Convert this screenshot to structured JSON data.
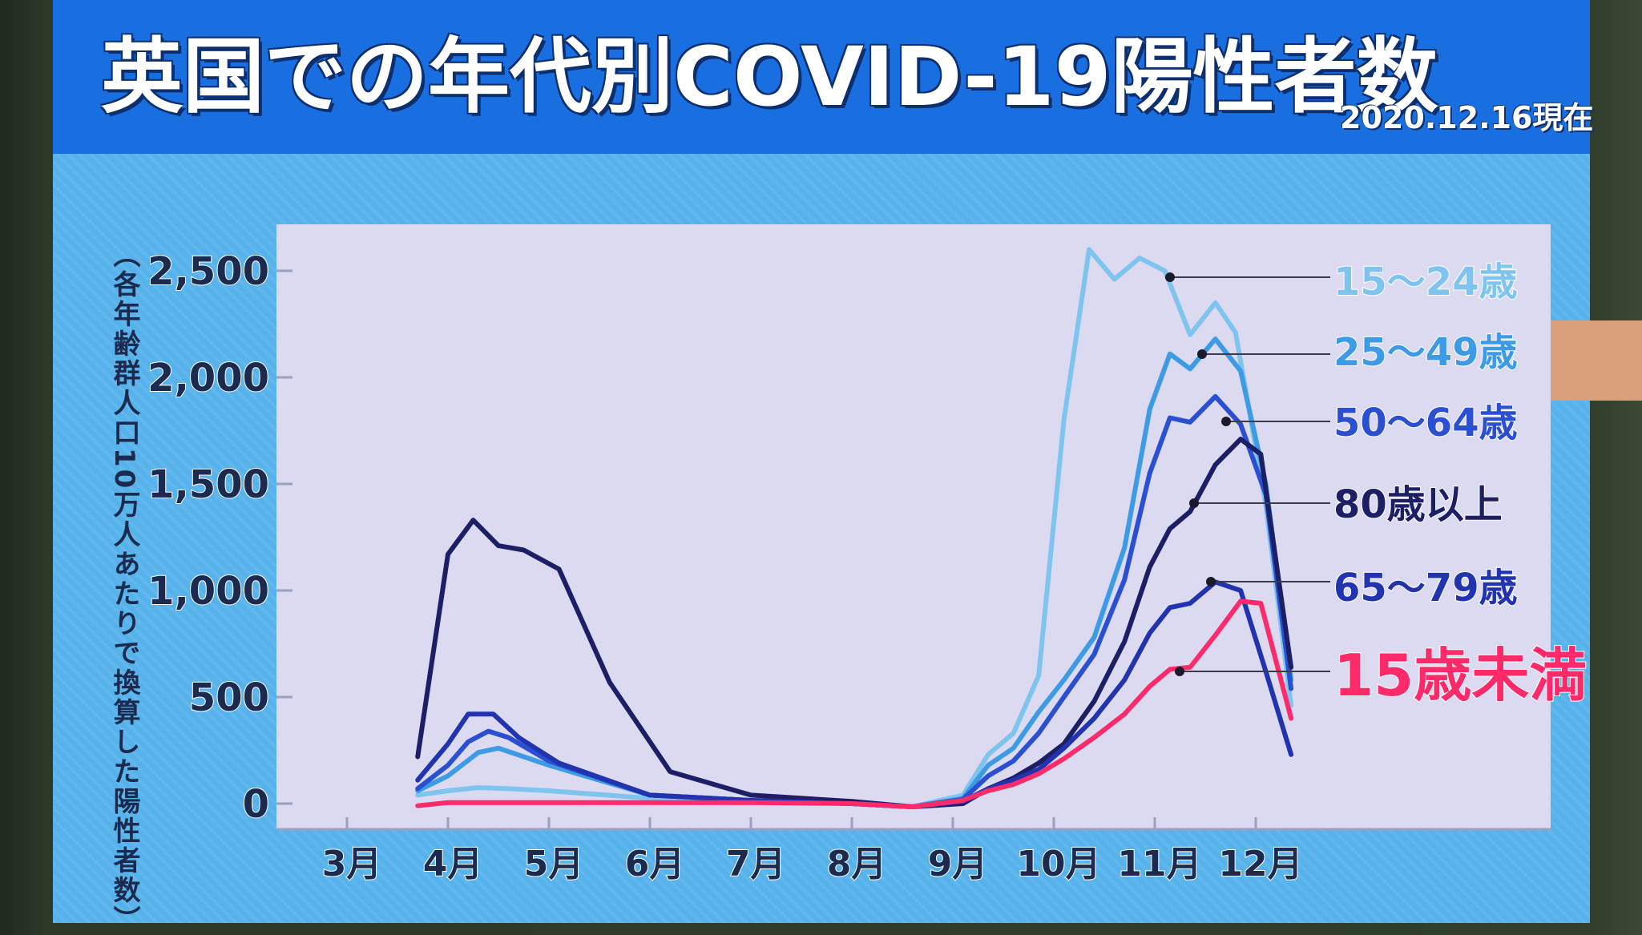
{
  "title": {
    "main": "英国での年代別COVID-19陽性者数",
    "date": "2020.12.16現在"
  },
  "colors": {
    "header": "#1a6fe0",
    "board": "#55b2ea",
    "plot_bg": "#dcdaf0",
    "axis_text": "#1b2a4e"
  },
  "chart_data": {
    "type": "line",
    "ylabel": "（各年齢群人口10万人あたりで換算した陽性者数）",
    "ylim": [
      0,
      2500
    ],
    "yticks": [
      0,
      500,
      1000,
      1500,
      2000,
      2500
    ],
    "ytick_labels": [
      "0",
      "500",
      "1,000",
      "1,500",
      "2,000",
      "2,500"
    ],
    "xtick_labels": [
      "3月",
      "4月",
      "5月",
      "6月",
      "7月",
      "8月",
      "9月",
      "10月",
      "11月",
      "12月"
    ],
    "x_unit": "month",
    "grid": false,
    "series": [
      {
        "name": "15〜24歳",
        "color": "#7fc4ee",
        "label_style": "normal",
        "points": [
          [
            3.7,
            40
          ],
          [
            4.0,
            60
          ],
          [
            4.3,
            75
          ],
          [
            4.6,
            70
          ],
          [
            5.0,
            60
          ],
          [
            6.0,
            25
          ],
          [
            7.0,
            10
          ],
          [
            8.0,
            0
          ],
          [
            8.6,
            -15
          ],
          [
            9.1,
            40
          ],
          [
            9.35,
            230
          ],
          [
            9.6,
            330
          ],
          [
            9.85,
            600
          ],
          [
            10.1,
            1800
          ],
          [
            10.35,
            2600
          ],
          [
            10.6,
            2460
          ],
          [
            10.85,
            2560
          ],
          [
            11.1,
            2500
          ],
          [
            11.35,
            2200
          ],
          [
            11.6,
            2350
          ],
          [
            11.8,
            2210
          ],
          [
            12.1,
            1400
          ],
          [
            12.35,
            460
          ]
        ]
      },
      {
        "name": "25〜49歳",
        "color": "#3d9be6",
        "label_style": "normal",
        "points": [
          [
            3.7,
            60
          ],
          [
            4.0,
            130
          ],
          [
            4.3,
            240
          ],
          [
            4.5,
            260
          ],
          [
            5.0,
            180
          ],
          [
            6.0,
            40
          ],
          [
            7.0,
            15
          ],
          [
            8.0,
            0
          ],
          [
            8.6,
            -15
          ],
          [
            9.1,
            25
          ],
          [
            9.35,
            180
          ],
          [
            9.6,
            260
          ],
          [
            9.85,
            430
          ],
          [
            10.1,
            580
          ],
          [
            10.4,
            780
          ],
          [
            10.7,
            1200
          ],
          [
            10.95,
            1850
          ],
          [
            11.15,
            2110
          ],
          [
            11.35,
            2040
          ],
          [
            11.6,
            2180
          ],
          [
            11.85,
            2030
          ],
          [
            12.1,
            1500
          ],
          [
            12.35,
            580
          ]
        ]
      },
      {
        "name": "50〜64歳",
        "color": "#2a4fd0",
        "label_style": "normal",
        "points": [
          [
            3.7,
            70
          ],
          [
            4.0,
            180
          ],
          [
            4.2,
            290
          ],
          [
            4.4,
            340
          ],
          [
            4.6,
            310
          ],
          [
            5.0,
            200
          ],
          [
            6.0,
            40
          ],
          [
            7.0,
            15
          ],
          [
            8.0,
            0
          ],
          [
            8.6,
            -15
          ],
          [
            9.1,
            20
          ],
          [
            9.35,
            130
          ],
          [
            9.6,
            200
          ],
          [
            9.85,
            330
          ],
          [
            10.1,
            500
          ],
          [
            10.4,
            700
          ],
          [
            10.7,
            1050
          ],
          [
            10.95,
            1550
          ],
          [
            11.15,
            1810
          ],
          [
            11.35,
            1790
          ],
          [
            11.6,
            1910
          ],
          [
            11.85,
            1780
          ],
          [
            12.1,
            1450
          ],
          [
            12.35,
            540
          ]
        ]
      },
      {
        "name": "80歳以上",
        "color": "#1c1f66",
        "label_style": "normal",
        "points": [
          [
            3.7,
            220
          ],
          [
            4.0,
            1170
          ],
          [
            4.25,
            1330
          ],
          [
            4.5,
            1210
          ],
          [
            4.75,
            1190
          ],
          [
            5.1,
            1100
          ],
          [
            5.6,
            570
          ],
          [
            6.2,
            150
          ],
          [
            7.0,
            40
          ],
          [
            8.0,
            10
          ],
          [
            8.6,
            -15
          ],
          [
            9.1,
            0
          ],
          [
            9.35,
            70
          ],
          [
            9.6,
            120
          ],
          [
            9.85,
            190
          ],
          [
            10.1,
            280
          ],
          [
            10.4,
            480
          ],
          [
            10.7,
            760
          ],
          [
            10.95,
            1110
          ],
          [
            11.15,
            1290
          ],
          [
            11.35,
            1370
          ],
          [
            11.6,
            1590
          ],
          [
            11.85,
            1710
          ],
          [
            12.05,
            1640
          ],
          [
            12.35,
            640
          ]
        ]
      },
      {
        "name": "65〜79歳",
        "color": "#2233b0",
        "label_style": "normal",
        "points": [
          [
            3.7,
            110
          ],
          [
            4.0,
            280
          ],
          [
            4.2,
            420
          ],
          [
            4.45,
            420
          ],
          [
            4.7,
            310
          ],
          [
            5.1,
            190
          ],
          [
            6.0,
            40
          ],
          [
            7.0,
            15
          ],
          [
            8.0,
            0
          ],
          [
            8.6,
            -15
          ],
          [
            9.1,
            10
          ],
          [
            9.35,
            70
          ],
          [
            9.6,
            110
          ],
          [
            9.85,
            160
          ],
          [
            10.1,
            260
          ],
          [
            10.4,
            400
          ],
          [
            10.7,
            580
          ],
          [
            10.95,
            800
          ],
          [
            11.15,
            920
          ],
          [
            11.35,
            940
          ],
          [
            11.6,
            1040
          ],
          [
            11.85,
            1000
          ],
          [
            12.1,
            620
          ],
          [
            12.35,
            230
          ]
        ]
      },
      {
        "name": "15歳未満",
        "color": "#ff2a6a",
        "label_style": "emphasis",
        "points": [
          [
            3.7,
            -10
          ],
          [
            4.0,
            5
          ],
          [
            4.5,
            5
          ],
          [
            5.0,
            5
          ],
          [
            6.0,
            5
          ],
          [
            7.0,
            5
          ],
          [
            8.0,
            0
          ],
          [
            8.6,
            -15
          ],
          [
            9.1,
            15
          ],
          [
            9.35,
            60
          ],
          [
            9.6,
            90
          ],
          [
            9.85,
            140
          ],
          [
            10.1,
            210
          ],
          [
            10.4,
            310
          ],
          [
            10.7,
            420
          ],
          [
            10.95,
            550
          ],
          [
            11.15,
            630
          ],
          [
            11.35,
            640
          ],
          [
            11.6,
            790
          ],
          [
            11.85,
            950
          ],
          [
            12.05,
            940
          ],
          [
            12.35,
            400
          ]
        ]
      }
    ]
  }
}
